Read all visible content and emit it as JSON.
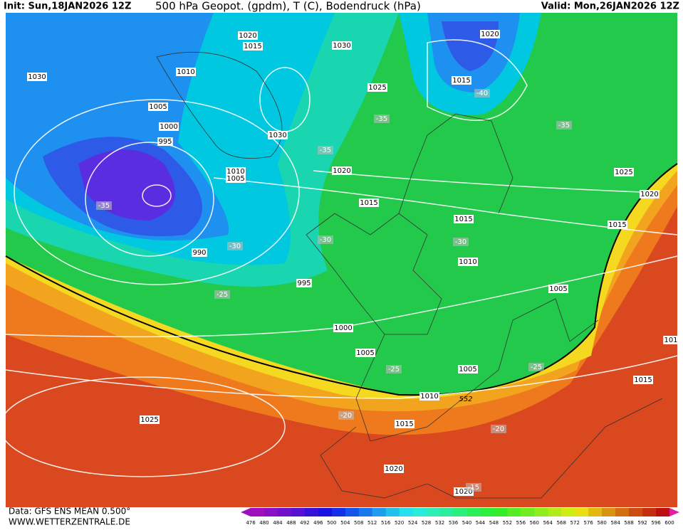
{
  "header": {
    "init": "Init: Sun,18JAN2026 12Z",
    "title": "500 hPa Geopot. (gpdm), T (C), Bodendruck (hPa)",
    "valid": "Valid: Mon,26JAN2026 12Z"
  },
  "footer": {
    "source": "Data: GFS ENS MEAN 0.500°",
    "site": "WWW.WETTERZENTRALE.DE"
  },
  "isobar_labels": [
    1020,
    1015,
    1030,
    1020,
    1030,
    1010,
    1025,
    1015,
    1005,
    1000,
    995,
    1030,
    1020,
    1025,
    1010,
    1005,
    1020,
    1015,
    1015,
    1015,
    990,
    1010,
    995,
    1005,
    1000,
    1005,
    1005,
    1010,
    1015,
    1015,
    1025,
    1020,
    1020,
    101
  ],
  "temperature_labels": [
    -35,
    -30,
    -30,
    -30,
    -35,
    -35,
    -40,
    -35,
    -25,
    -25,
    -25,
    -20,
    -20,
    -15
  ],
  "geopotential_label": 552,
  "colorbar": {
    "labels": [
      476,
      480,
      484,
      488,
      492,
      496,
      500,
      504,
      508,
      512,
      516,
      520,
      524,
      528,
      532,
      536,
      540,
      544,
      548,
      552,
      556,
      560,
      564,
      568,
      572,
      576,
      580,
      584,
      588,
      592,
      596,
      600
    ]
  }
}
